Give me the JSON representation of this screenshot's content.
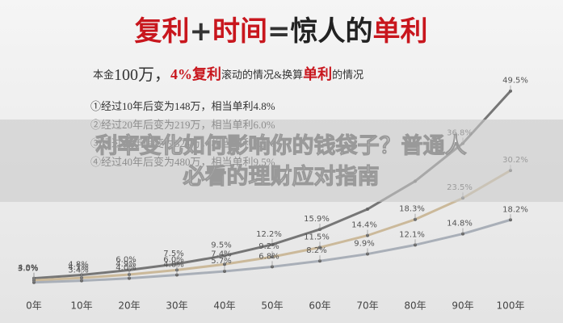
{
  "chart_data": {
    "type": "line",
    "title": [
      "复利",
      "+",
      "时间",
      "=",
      "惊人的",
      "单利"
    ],
    "subtitle": [
      "本金",
      "100万，",
      "4%复利",
      "滚动的情况&换算",
      "单利",
      "的情况"
    ],
    "annotations": [
      "①经过10年后变为148万，相当单利4.8%",
      "②经过20年后变为219万，相当单利6.0%",
      "③经过30年后变为324万，相当单利7.5%",
      "④经过40年后变为480万，相当单利9.5%"
    ],
    "categories": [
      "0年",
      "10年",
      "20年",
      "30年",
      "40年",
      "50年",
      "60年",
      "70年",
      "80年",
      "90年",
      "100年"
    ],
    "ylim": [
      0,
      52
    ],
    "series": [
      {
        "color": "#767676",
        "values": [
          4.0,
          4.8,
          6.0,
          7.5,
          9.5,
          12.2,
          15.9,
          20.8,
          27.6,
          36.8,
          49.5
        ],
        "value_labels": [
          "4.0%",
          "4.8%",
          "6.0%",
          "7.5%",
          "9.5%",
          "12.2%",
          "15.9%",
          null,
          null,
          "36.8%",
          "49.5%"
        ]
      },
      {
        "color": "#cbb99a",
        "values": [
          3.5,
          4.1,
          4.9,
          6.0,
          7.4,
          9.2,
          11.5,
          14.4,
          18.3,
          23.5,
          30.2
        ],
        "value_labels": [
          "3.5%",
          "4.1%",
          "4.9%",
          "6.0%",
          "7.4%",
          "9.2%",
          "11.5%",
          "14.4%",
          "18.3%",
          "23.5%",
          "30.2%"
        ]
      },
      {
        "color": "#a9afb8",
        "values": [
          3.0,
          3.4,
          4.0,
          4.8,
          5.7,
          6.8,
          8.2,
          9.9,
          12.1,
          14.8,
          18.2
        ],
        "value_labels": [
          "3.0%",
          "3.4%",
          "4.0%",
          "4.8%",
          "5.7%",
          "6.8%",
          "8.2%",
          "9.9%",
          "12.1%",
          "14.8%",
          "18.2%"
        ]
      }
    ]
  },
  "banner": [
    "利率变化如何影响你的钱袋子？普通人",
    "必看的理财应对指南"
  ]
}
